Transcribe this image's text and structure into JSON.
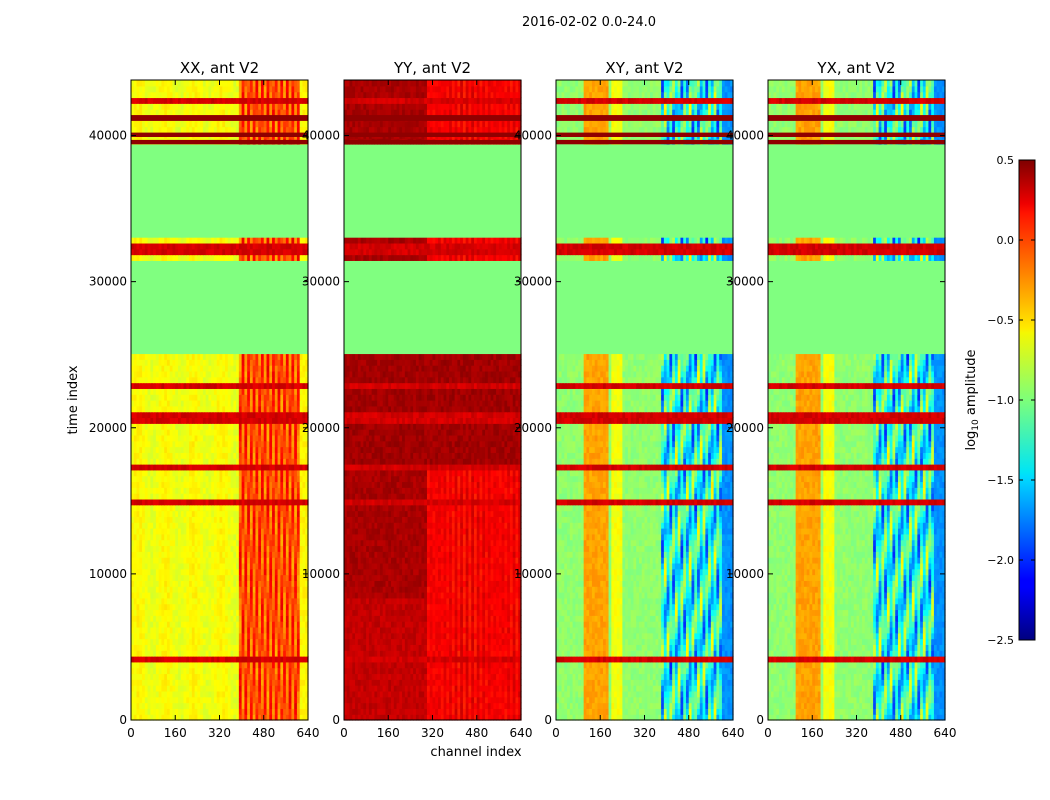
{
  "chart_data": {
    "type": "heatmap",
    "title": "2016-02-02 0.0-24.0",
    "xlabel": "channel index",
    "ylabel": "time index",
    "xlim": [
      0,
      640
    ],
    "ylim": [
      0,
      43800
    ],
    "x_ticks": [
      0,
      160,
      320,
      480,
      640
    ],
    "y_ticks": [
      0,
      10000,
      20000,
      30000,
      40000
    ],
    "panels": [
      {
        "title": "XX, ant V2",
        "pol": "XX"
      },
      {
        "title": "YY, ant V2",
        "pol": "YY"
      },
      {
        "title": "XY, ant V2",
        "pol": "XY"
      },
      {
        "title": "YX, ant V2",
        "pol": "YX"
      }
    ],
    "colorbar": {
      "label": "log10 amplitude",
      "label_prefix": "log",
      "label_sub": "10",
      "label_suffix": " amplitude",
      "range": [
        -2.5,
        0.5
      ],
      "ticks": [
        0.5,
        0.0,
        -0.5,
        -1.0,
        -1.5,
        -2.0,
        -2.5
      ],
      "tick_labels": [
        "0.5",
        "0.0",
        "−0.5",
        "−1.0",
        "−1.5",
        "−2.0",
        "−2.5"
      ],
      "colormap": "jet"
    },
    "flagged_time_ranges": [
      [
        25200,
        31300
      ],
      [
        33100,
        39400
      ]
    ],
    "flagged_value": -1.0
  }
}
